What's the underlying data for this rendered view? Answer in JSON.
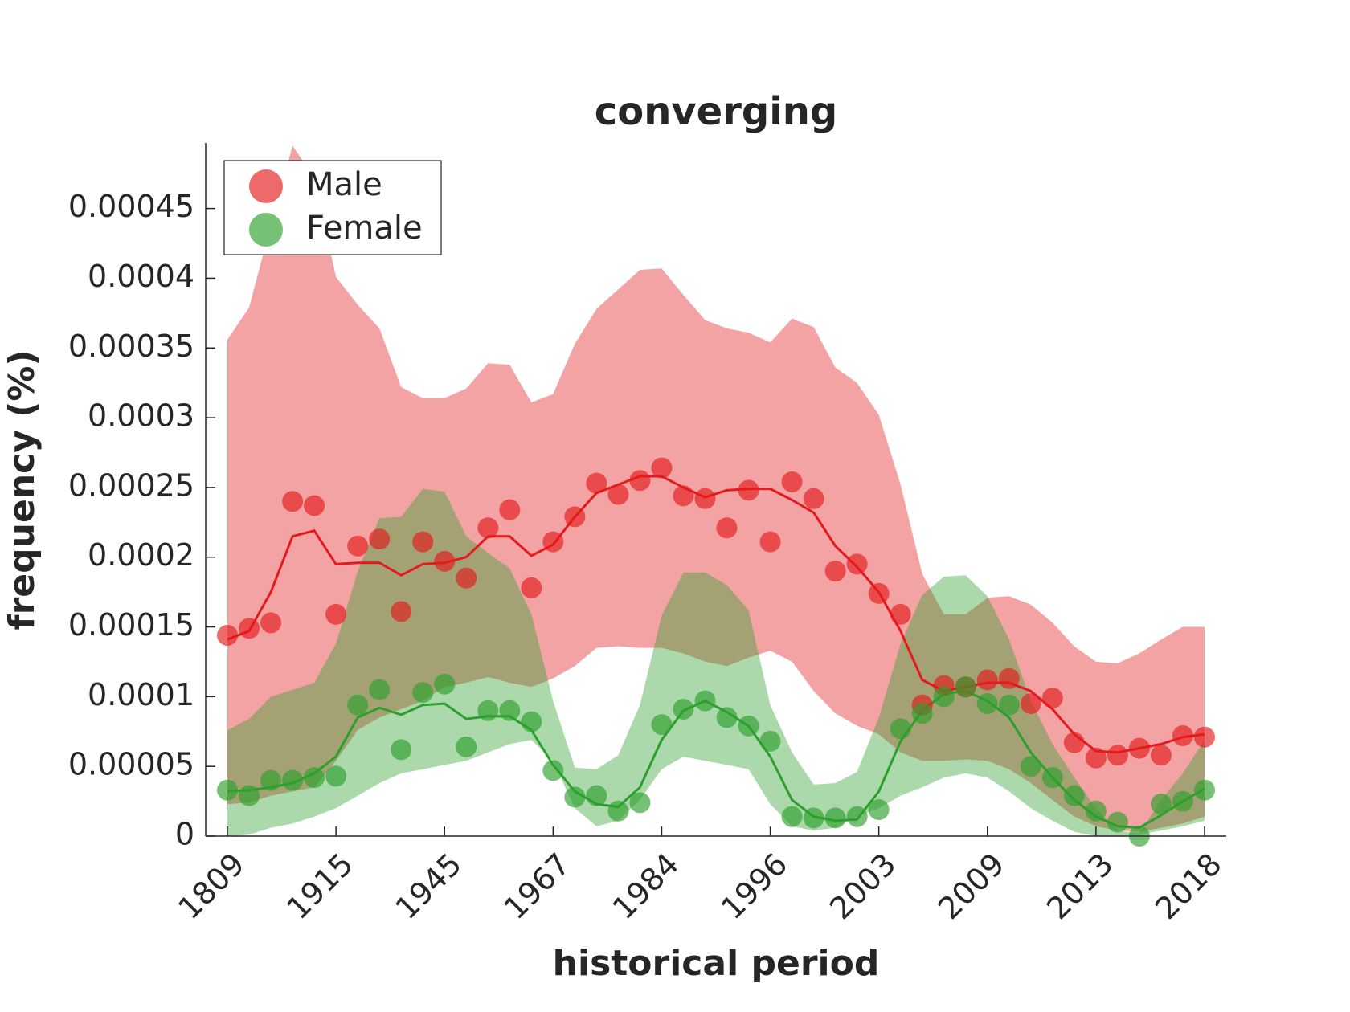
{
  "chart_data": {
    "type": "line",
    "title": "converging",
    "x_label": "historical period",
    "y_label": "frequency (%)",
    "categories": [
      "1809",
      null,
      null,
      null,
      null,
      "1915",
      null,
      null,
      null,
      null,
      "1945",
      null,
      null,
      null,
      null,
      "1967",
      null,
      null,
      null,
      null,
      "1984",
      null,
      null,
      null,
      null,
      "1996",
      null,
      null,
      null,
      null,
      "2003",
      null,
      null,
      null,
      null,
      "2009",
      null,
      null,
      null,
      null,
      "2013",
      null,
      null,
      null,
      null,
      "2018"
    ],
    "ylim": [
      0,
      0.000497
    ],
    "yticks": [
      0,
      5e-05,
      0.0001,
      0.00015,
      0.0002,
      0.00025,
      0.0003,
      0.00035,
      0.0004,
      0.00045
    ],
    "grid": false,
    "legend": "upper left",
    "series": [
      {
        "name": "Male",
        "color": "#e41a1c",
        "values": [
          0.000144,
          0.000149,
          0.000153,
          0.00024,
          0.000237,
          0.000159,
          0.000208,
          0.000213,
          0.000161,
          0.000211,
          0.000197,
          0.000185,
          0.000221,
          0.000234,
          0.000178,
          0.000211,
          0.000229,
          0.000253,
          0.000245,
          0.000255,
          0.000264,
          0.000244,
          0.000242,
          0.000221,
          0.000248,
          0.000211,
          0.000254,
          0.000242,
          0.00019,
          0.000195,
          0.000174,
          0.000159,
          9.4e-05,
          0.000108,
          0.000107,
          0.000112,
          0.000113,
          9.5e-05,
          9.9e-05,
          6.7e-05,
          5.6e-05,
          5.8e-05,
          6.3e-05,
          5.8e-05,
          7.2e-05,
          7.1e-05
        ],
        "trend": [
          0.000141,
          0.000147,
          0.000175,
          0.000215,
          0.000219,
          0.000195,
          0.000196,
          0.000196,
          0.000187,
          0.000195,
          0.000196,
          0.0002,
          0.000215,
          0.000215,
          0.000201,
          0.000209,
          0.000229,
          0.000246,
          0.000252,
          0.000258,
          0.000258,
          0.00025,
          0.000243,
          0.000248,
          0.000249,
          0.000249,
          0.000241,
          0.000232,
          0.000208,
          0.000193,
          0.000175,
          0.000147,
          0.000112,
          0.000104,
          0.000107,
          0.00011,
          0.00011,
          0.000104,
          9.1e-05,
          7.3e-05,
          6.1e-05,
          6e-05,
          6.3e-05,
          6.6e-05,
          7.1e-05,
          7.3e-05
        ],
        "upper": [
          0.000356,
          0.000379,
          0.000438,
          0.000495,
          0.000472,
          0.000401,
          0.000381,
          0.000364,
          0.000322,
          0.000314,
          0.000314,
          0.000321,
          0.000339,
          0.000338,
          0.000311,
          0.000317,
          0.000353,
          0.000378,
          0.000392,
          0.000406,
          0.000407,
          0.000388,
          0.00037,
          0.000364,
          0.000361,
          0.000354,
          0.000371,
          0.000365,
          0.000336,
          0.000325,
          0.000302,
          0.000252,
          0.000188,
          0.000159,
          0.000159,
          0.000171,
          0.000172,
          0.000166,
          0.000153,
          0.000136,
          0.000125,
          0.000124,
          0.000131,
          0.000141,
          0.00015,
          0.00015
        ],
        "lower": [
          2.3e-05,
          2.4e-05,
          2.9e-05,
          3.2e-05,
          3.5e-05,
          5.4e-05,
          7.6e-05,
          8.5e-05,
          9.1e-05,
          9.7e-05,
          0.000107,
          0.00011,
          0.000114,
          0.00011,
          0.000107,
          0.000113,
          0.000122,
          0.000135,
          0.000136,
          0.000135,
          0.000135,
          0.000131,
          0.000125,
          0.000122,
          0.000128,
          0.000133,
          0.000125,
          0.000104,
          8.8e-05,
          7.9e-05,
          7.3e-05,
          6e-05,
          5.4e-05,
          5.4e-05,
          5.5e-05,
          5.4e-05,
          4.8e-05,
          3.8e-05,
          2.6e-05,
          1.4e-05,
          7e-06,
          4e-06,
          3e-06,
          6e-06,
          9e-06,
          1.4e-05
        ]
      },
      {
        "name": "Female",
        "color": "#2ca02c",
        "values": [
          3.3e-05,
          2.9e-05,
          4e-05,
          4e-05,
          4.2e-05,
          4.3e-05,
          9.4e-05,
          0.000105,
          6.2e-05,
          0.000103,
          0.000109,
          6.4e-05,
          9e-05,
          9e-05,
          8.2e-05,
          4.7e-05,
          2.8e-05,
          2.9e-05,
          1.8e-05,
          2.4e-05,
          8e-05,
          9.1e-05,
          9.7e-05,
          8.5e-05,
          7.9e-05,
          6.8e-05,
          1.4e-05,
          1.3e-05,
          1.3e-05,
          1.4e-05,
          1.9e-05,
          7.7e-05,
          8.8e-05,
          0.0001,
          0.000107,
          9.5e-05,
          9.4e-05,
          5e-05,
          4.2e-05,
          2.9e-05,
          1.8e-05,
          1e-05,
          0,
          2.3e-05,
          2.5e-05,
          3.3e-05
        ],
        "trend": [
          3.2e-05,
          3.3e-05,
          3.5e-05,
          3.8e-05,
          4.5e-05,
          5.7e-05,
          8.5e-05,
          9.2e-05,
          8.7e-05,
          9.4e-05,
          9.5e-05,
          8.4e-05,
          8.6e-05,
          8.6e-05,
          7.6e-05,
          5.1e-05,
          3.2e-05,
          2.3e-05,
          2.1e-05,
          3.5e-05,
          6.9e-05,
          9e-05,
          9.7e-05,
          8.9e-05,
          7.9e-05,
          5.7e-05,
          2.6e-05,
          1.4e-05,
          1.1e-05,
          1.2e-05,
          3.2e-05,
          6.8e-05,
          9e-05,
          0.000102,
          0.000104,
          9.7e-05,
          8.5e-05,
          6e-05,
          4.2e-05,
          2.6e-05,
          1.4e-05,
          7e-06,
          6e-06,
          1.5e-05,
          2.5e-05,
          3.4e-05
        ],
        "upper": [
          7.6e-05,
          8.4e-05,
          0.0001,
          0.000105,
          0.00011,
          0.000138,
          0.00019,
          0.000228,
          0.000229,
          0.000249,
          0.000247,
          0.000215,
          0.000203,
          0.000192,
          0.000159,
          9.7e-05,
          4.9e-05,
          4.8e-05,
          5.8e-05,
          9.4e-05,
          0.000158,
          0.000189,
          0.000189,
          0.00018,
          0.000162,
          9.4e-05,
          6e-05,
          3.7e-05,
          3.8e-05,
          4.6e-05,
          8.5e-05,
          0.000138,
          0.000173,
          0.000186,
          0.000187,
          0.000172,
          0.000141,
          9.7e-05,
          6.6e-05,
          4.2e-05,
          2e-05,
          4e-06,
          2e-06,
          2.6e-05,
          4.5e-05,
          6.9e-05
        ],
        "lower": [
          0,
          1e-06,
          6e-06,
          9e-06,
          1.4e-05,
          2e-05,
          2.9e-05,
          3.8e-05,
          4.5e-05,
          4.8e-05,
          5.1e-05,
          5.4e-05,
          6e-05,
          6.6e-05,
          6.9e-05,
          5.4e-05,
          2e-05,
          7e-06,
          1.1e-05,
          2.6e-05,
          4.8e-05,
          5.7e-05,
          5.4e-05,
          5.1e-05,
          4.8e-05,
          2.3e-05,
          7e-06,
          4e-06,
          6e-06,
          1.4e-05,
          2e-05,
          2.9e-05,
          3.5e-05,
          4.2e-05,
          4.5e-05,
          4.2e-05,
          3.2e-05,
          2e-05,
          1.1e-05,
          3e-06,
          0,
          0,
          1e-06,
          4e-06,
          7e-06,
          1.1e-05
        ]
      }
    ]
  }
}
